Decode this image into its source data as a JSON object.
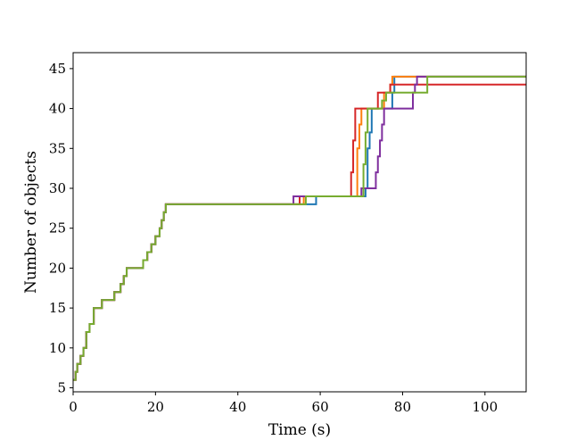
{
  "chart_data": {
    "type": "line",
    "title": "",
    "xlabel": "Time (s)",
    "ylabel": "Number of objects",
    "xlim": [
      0,
      110
    ],
    "ylim": [
      4.5,
      47
    ],
    "xticks": [
      0,
      20,
      40,
      60,
      80,
      100
    ],
    "yticks": [
      5,
      10,
      15,
      20,
      25,
      30,
      35,
      40,
      45
    ],
    "grid": false,
    "legend": "none",
    "step": "post",
    "series": [
      {
        "color": "#1f77b4",
        "points": [
          [
            0,
            6
          ],
          [
            0.6,
            7
          ],
          [
            1,
            8
          ],
          [
            1.8,
            9
          ],
          [
            2.5,
            10
          ],
          [
            3.2,
            12
          ],
          [
            4,
            13
          ],
          [
            5,
            15
          ],
          [
            7,
            16
          ],
          [
            10,
            17
          ],
          [
            11.5,
            18
          ],
          [
            12.3,
            19
          ],
          [
            13,
            20
          ],
          [
            17,
            21
          ],
          [
            18,
            22
          ],
          [
            19,
            23
          ],
          [
            20,
            24
          ],
          [
            21,
            25
          ],
          [
            21.5,
            26
          ],
          [
            22,
            27
          ],
          [
            22.5,
            28
          ],
          [
            57.5,
            28
          ],
          [
            59,
            29
          ],
          [
            70,
            29
          ],
          [
            71,
            30
          ],
          [
            71.5,
            35
          ],
          [
            72,
            37
          ],
          [
            72.5,
            40
          ],
          [
            77,
            40
          ],
          [
            77.5,
            42
          ],
          [
            78,
            44
          ],
          [
            110,
            44
          ]
        ]
      },
      {
        "color": "#ff7f0e",
        "points": [
          [
            0,
            6
          ],
          [
            0.6,
            7
          ],
          [
            1,
            8
          ],
          [
            1.8,
            9
          ],
          [
            2.5,
            10
          ],
          [
            3.2,
            12
          ],
          [
            4,
            13
          ],
          [
            5,
            15
          ],
          [
            7,
            16
          ],
          [
            10,
            17
          ],
          [
            11.5,
            18
          ],
          [
            12.3,
            19
          ],
          [
            13,
            20
          ],
          [
            17,
            21
          ],
          [
            18,
            22
          ],
          [
            19,
            23
          ],
          [
            20,
            24
          ],
          [
            21,
            25
          ],
          [
            21.5,
            26
          ],
          [
            22,
            27
          ],
          [
            22.5,
            28
          ],
          [
            55,
            28
          ],
          [
            56,
            29
          ],
          [
            68.5,
            29
          ],
          [
            69,
            35
          ],
          [
            69.5,
            38
          ],
          [
            70,
            40
          ],
          [
            75,
            40
          ],
          [
            75.5,
            42
          ],
          [
            77,
            43
          ],
          [
            77.5,
            44
          ],
          [
            110,
            44
          ]
        ]
      },
      {
        "color": "#d62728",
        "points": [
          [
            0,
            6
          ],
          [
            0.6,
            7
          ],
          [
            1,
            8
          ],
          [
            1.8,
            9
          ],
          [
            2.5,
            10
          ],
          [
            3.2,
            12
          ],
          [
            4,
            13
          ],
          [
            5,
            15
          ],
          [
            7,
            16
          ],
          [
            10,
            17
          ],
          [
            11.5,
            18
          ],
          [
            12.3,
            19
          ],
          [
            13,
            20
          ],
          [
            17,
            21
          ],
          [
            18,
            22
          ],
          [
            19,
            23
          ],
          [
            20,
            24
          ],
          [
            21,
            25
          ],
          [
            21.5,
            26
          ],
          [
            22,
            27
          ],
          [
            22.5,
            28
          ],
          [
            54.5,
            28
          ],
          [
            55,
            29
          ],
          [
            67,
            29
          ],
          [
            67.5,
            32
          ],
          [
            68,
            36
          ],
          [
            68.5,
            40
          ],
          [
            73.5,
            40
          ],
          [
            74,
            42
          ],
          [
            77,
            43
          ],
          [
            110,
            43
          ]
        ]
      },
      {
        "color": "#7f2f9e",
        "points": [
          [
            0,
            6
          ],
          [
            0.6,
            7
          ],
          [
            1,
            8
          ],
          [
            1.8,
            9
          ],
          [
            2.5,
            10
          ],
          [
            3.2,
            12
          ],
          [
            4,
            13
          ],
          [
            5,
            15
          ],
          [
            7,
            16
          ],
          [
            10,
            17
          ],
          [
            11.5,
            18
          ],
          [
            12.3,
            19
          ],
          [
            13,
            20
          ],
          [
            17,
            21
          ],
          [
            18,
            22
          ],
          [
            19,
            23
          ],
          [
            20,
            24
          ],
          [
            21,
            25
          ],
          [
            21.5,
            26
          ],
          [
            22,
            27
          ],
          [
            22.5,
            28
          ],
          [
            53,
            28
          ],
          [
            53.5,
            29
          ],
          [
            69.5,
            29
          ],
          [
            70,
            30
          ],
          [
            73,
            30
          ],
          [
            73.5,
            32
          ],
          [
            74,
            34
          ],
          [
            74.5,
            36
          ],
          [
            75,
            38
          ],
          [
            75.5,
            40
          ],
          [
            82,
            40
          ],
          [
            82.5,
            42
          ],
          [
            83,
            43
          ],
          [
            83.5,
            44
          ],
          [
            110,
            44
          ]
        ]
      },
      {
        "color": "#77ac30",
        "points": [
          [
            0,
            6
          ],
          [
            0.6,
            7
          ],
          [
            1,
            8
          ],
          [
            1.8,
            9
          ],
          [
            2.5,
            10
          ],
          [
            3.2,
            12
          ],
          [
            4,
            13
          ],
          [
            5,
            15
          ],
          [
            7,
            16
          ],
          [
            10,
            17
          ],
          [
            11.5,
            18
          ],
          [
            12.3,
            19
          ],
          [
            13,
            20
          ],
          [
            17,
            21
          ],
          [
            18,
            22
          ],
          [
            19,
            23
          ],
          [
            20,
            24
          ],
          [
            21,
            25
          ],
          [
            21.5,
            26
          ],
          [
            22,
            27
          ],
          [
            22.5,
            28
          ],
          [
            56,
            28
          ],
          [
            56.5,
            29
          ],
          [
            70,
            29
          ],
          [
            70.5,
            33
          ],
          [
            71,
            37
          ],
          [
            71.5,
            40
          ],
          [
            74.5,
            40
          ],
          [
            75,
            41
          ],
          [
            76,
            42
          ],
          [
            85,
            42
          ],
          [
            86,
            44
          ],
          [
            110,
            44
          ]
        ]
      }
    ]
  }
}
